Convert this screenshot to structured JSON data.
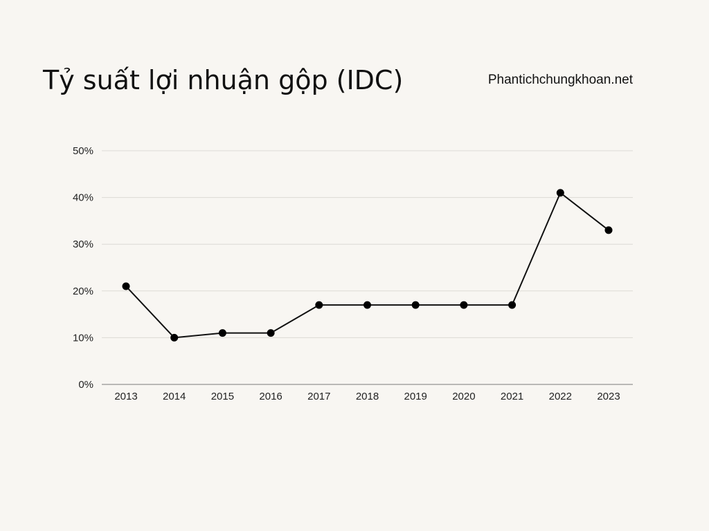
{
  "title": "Tỷ suất lợi nhuận gộp (IDC)",
  "site": "Phantichchungkhoan.net",
  "chart_data": {
    "type": "line",
    "title": "Tỷ suất lợi nhuận gộp (IDC)",
    "x": [
      "2013",
      "2014",
      "2015",
      "2016",
      "2017",
      "2018",
      "2019",
      "2020",
      "2021",
      "2022",
      "2023"
    ],
    "series": [
      {
        "values": [
          21,
          10,
          11,
          11,
          17,
          17,
          17,
          17,
          17,
          41,
          33
        ]
      }
    ],
    "y_ticks": [
      0,
      10,
      20,
      30,
      40,
      50
    ],
    "y_tick_suffix": "%",
    "ylim": [
      0,
      50
    ],
    "xlabel": "",
    "ylabel": "",
    "grid": true,
    "colors": {
      "line": "#111111",
      "marker": "#000000",
      "grid": "#dcdad5",
      "axis": "#7a7a7a"
    }
  }
}
